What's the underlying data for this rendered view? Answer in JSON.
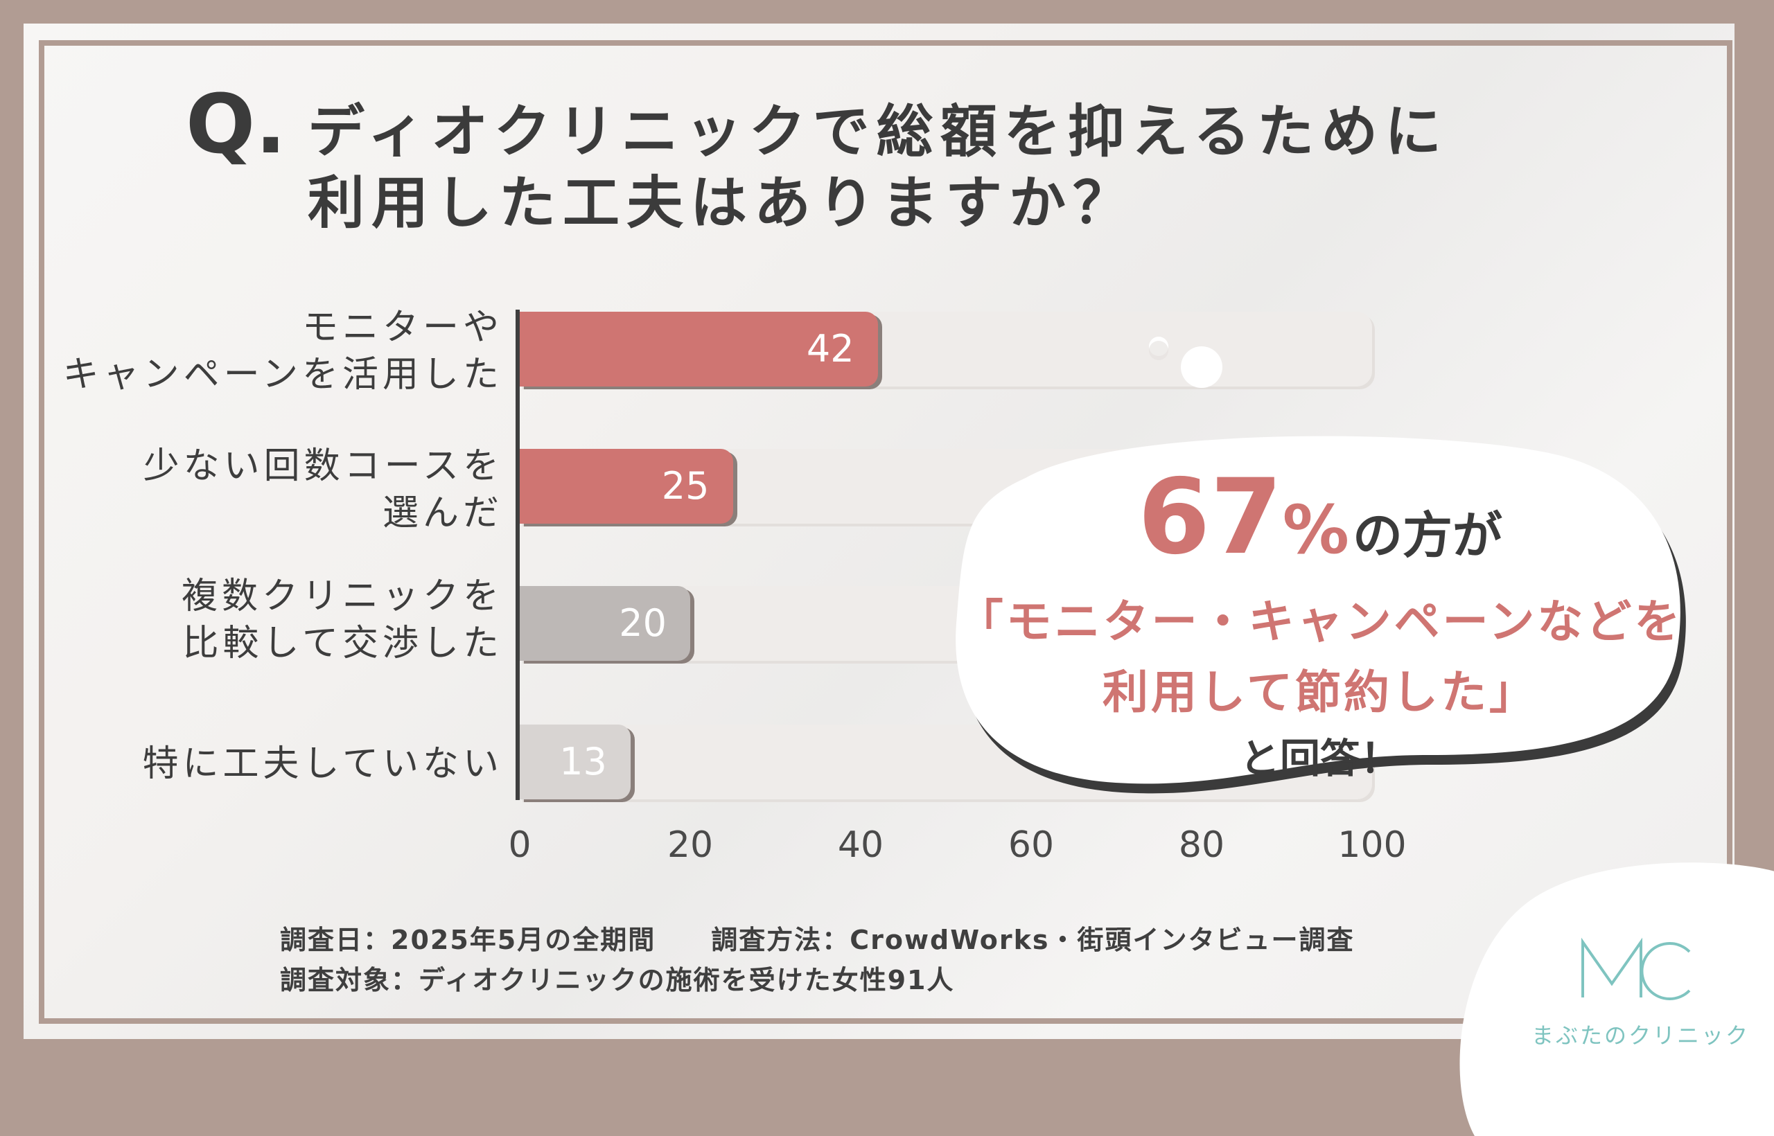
{
  "header": {
    "q_mark": "Q.",
    "title_line1": "ディオクリニックで総額を抑えるために",
    "title_line2": "利用した工夫はありますか？"
  },
  "chart_data": {
    "type": "bar",
    "orientation": "horizontal",
    "categories": [
      "モニターや\nキャンペーンを活用した",
      "少ない回数コースを\n選んだ",
      "複数クリニックを\n比較して交渉した",
      "特に工夫していない"
    ],
    "values": [
      42,
      25,
      20,
      13
    ],
    "xlim": [
      0,
      100
    ],
    "xticks": [
      0,
      20,
      40,
      60,
      80,
      100
    ],
    "bar_colors": [
      "#cf7572",
      "#cf7572",
      "#bdb8b6",
      "#d8d4d2"
    ],
    "grid": false,
    "legend": "none"
  },
  "callout": {
    "percent": "67",
    "percent_sign": "%",
    "tail": "の方が",
    "quote_line1": "「モニター・キャンペーンなどを",
    "quote_line2": "利用して節約した」",
    "answer": "と回答！"
  },
  "footer": {
    "line1": "調査日：2025年5月の全期間　　調査方法：CrowdWorks・街頭インタビュー調査",
    "line2": "調査対象：ディオクリニックの施術を受けた女性91人"
  },
  "logo": {
    "monogram": "MC",
    "name": "まぶたのクリニック",
    "color": "#7fc4c0"
  }
}
